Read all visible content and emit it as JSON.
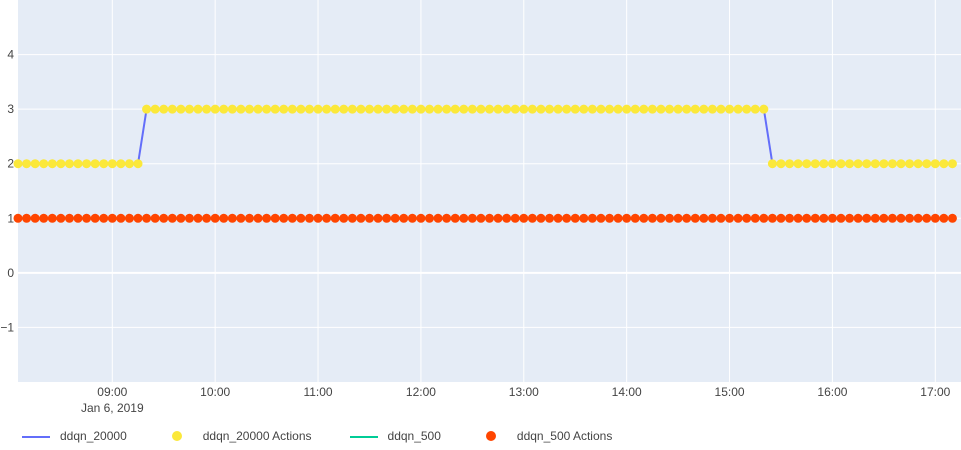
{
  "chart_data": {
    "type": "line",
    "x_start": "2019-01-06 08:05",
    "x_end": "2019-01-06 17:10",
    "x_step_minutes": 5,
    "xlim": [
      "2019-01-06 08:05",
      "2019-01-06 17:15"
    ],
    "ylim": [
      -2,
      5
    ],
    "grid": true,
    "legend_position": "bottom-left",
    "x_ticks": [
      {
        "value": "2019-01-06 09:00",
        "label": "09:00",
        "sublabel": "Jan 6, 2019"
      },
      {
        "value": "2019-01-06 10:00",
        "label": "10:00"
      },
      {
        "value": "2019-01-06 11:00",
        "label": "11:00"
      },
      {
        "value": "2019-01-06 12:00",
        "label": "12:00"
      },
      {
        "value": "2019-01-06 13:00",
        "label": "13:00"
      },
      {
        "value": "2019-01-06 14:00",
        "label": "14:00"
      },
      {
        "value": "2019-01-06 15:00",
        "label": "15:00"
      },
      {
        "value": "2019-01-06 16:00",
        "label": "16:00"
      },
      {
        "value": "2019-01-06 17:00",
        "label": "17:00"
      }
    ],
    "y_ticks": [
      {
        "value": -1,
        "label": "−1"
      },
      {
        "value": 0,
        "label": "0"
      },
      {
        "value": 1,
        "label": "1"
      },
      {
        "value": 2,
        "label": "2"
      },
      {
        "value": 3,
        "label": "3"
      },
      {
        "value": 4,
        "label": "4"
      }
    ],
    "series": [
      {
        "name": "ddqn_20000",
        "marker_name": "ddqn_20000 Actions",
        "line_color": "#636efa",
        "marker_color": "#fbe83a",
        "segments": [
          {
            "from": "2019-01-06 08:05",
            "to": "2019-01-06 09:15",
            "value": 2
          },
          {
            "from": "2019-01-06 09:20",
            "to": "2019-01-06 15:20",
            "value": 3
          },
          {
            "from": "2019-01-06 15:25",
            "to": "2019-01-06 17:10",
            "value": 2
          }
        ]
      },
      {
        "name": "ddqn_500",
        "marker_name": "ddqn_500 Actions",
        "line_color": "#00cc96",
        "marker_color": "#ff4500",
        "segments": [
          {
            "from": "2019-01-06 08:05",
            "to": "2019-01-06 17:10",
            "value": 1
          }
        ]
      }
    ]
  }
}
